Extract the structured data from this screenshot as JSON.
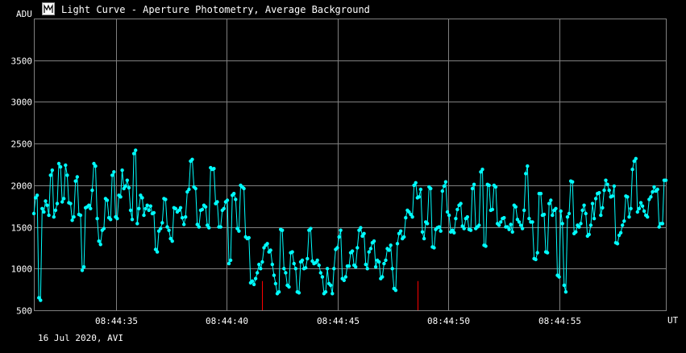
{
  "window": {
    "title": "Light Curve - Aperture Photometry, Average Background"
  },
  "footer": {
    "text": "16 Jul 2020, AVI"
  },
  "colors": {
    "background": "#000000",
    "grid": "#808080",
    "series": "#00ffff",
    "marker": "#ff0000"
  },
  "icons": {
    "app": "light-curve-app-icon"
  },
  "chart_data": {
    "type": "line",
    "title": "Light Curve - Aperture Photometry, Average Background",
    "ylabel": "ADU",
    "xlabel": "UT",
    "ylim": [
      500,
      4000
    ],
    "xlim": [
      "08:44:31.3",
      "08:44:59.8"
    ],
    "y_ticks": [
      500,
      1000,
      1500,
      2000,
      2500,
      3000,
      3500
    ],
    "x_ticks": [
      "08:44:35",
      "08:44:40",
      "08:44:45",
      "08:44:50",
      "08:44:55"
    ],
    "grid": true,
    "markers_x": [
      "08:44:41.6",
      "08:44:48.6"
    ],
    "series": [
      {
        "values": [
          1660,
          1850,
          1880,
          650,
          620,
          1720,
          1680,
          1810,
          1760,
          1640,
          2120,
          2180,
          1620,
          1700,
          1780,
          2260,
          2220,
          1800,
          1840,
          2240,
          2120,
          1790,
          1780,
          1580,
          1620,
          2050,
          2100,
          1650,
          1640,
          980,
          1020,
          1730,
          1740,
          1760,
          1720,
          1940,
          2260,
          2230,
          1600,
          1330,
          1290,
          1460,
          1480,
          1840,
          1820,
          1610,
          1590,
          2120,
          2160,
          1620,
          1600,
          1880,
          1860,
          2180,
          1960,
          1990,
          2060,
          1970,
          1700,
          1590,
          2380,
          2420,
          1540,
          1720,
          1880,
          1850,
          1640,
          1720,
          1760,
          1700,
          1750,
          1660,
          1670,
          1230,
          1200,
          1450,
          1480,
          1550,
          1840,
          1830,
          1500,
          1460,
          1360,
          1330,
          1730,
          1720,
          1680,
          1700,
          1730,
          1610,
          1530,
          1620,
          1920,
          1950,
          2290,
          2310,
          1980,
          1960,
          1530,
          1500,
          1700,
          1710,
          1760,
          1740,
          1520,
          1490,
          2210,
          2190,
          2200,
          1780,
          1800,
          1500,
          1500,
          1700,
          1720,
          1800,
          1820,
          1060,
          1100,
          1880,
          1900,
          1830,
          1480,
          1450,
          2000,
          1980,
          1960,
          1380,
          1360,
          1370,
          830,
          850,
          810,
          880,
          950,
          1050,
          1000,
          1080,
          1250,
          1280,
          1300,
          1200,
          1220,
          1050,
          920,
          820,
          700,
          720,
          1470,
          1460,
          1000,
          950,
          800,
          780,
          1190,
          1200,
          1060,
          1000,
          720,
          710,
          1080,
          1100,
          1000,
          1010,
          1120,
          1460,
          1480,
          1090,
          1060,
          1070,
          1100,
          1040,
          950,
          900,
          700,
          720,
          1000,
          820,
          800,
          700,
          1000,
          1230,
          1250,
          1380,
          1460,
          880,
          860,
          900,
          1030,
          1030,
          1190,
          1210,
          1040,
          1020,
          1250,
          1460,
          1490,
          1390,
          1420,
          1050,
          1000,
          1200,
          1240,
          1310,
          1330,
          1020,
          1100,
          1080,
          880,
          900,
          1060,
          1100,
          1240,
          1220,
          1280,
          1000,
          760,
          740,
          1300,
          1420,
          1450,
          1360,
          1380,
          1610,
          1700,
          1680,
          1650,
          1620,
          2000,
          2030,
          1850,
          1860,
          1950,
          1440,
          1360,
          1560,
          1540,
          1980,
          1960,
          1260,
          1250,
          1470,
          1490,
          1500,
          1450,
          1930,
          1990,
          2040,
          1680,
          1640,
          1440,
          1460,
          1430,
          1600,
          1710,
          1760,
          1780,
          1510,
          1480,
          1600,
          1620,
          1470,
          1460,
          1960,
          2010,
          1480,
          1500,
          1520,
          2160,
          2190,
          1280,
          1270,
          2010,
          2000,
          1700,
          1710,
          2000,
          1980,
          1540,
          1520,
          1560,
          1600,
          1610,
          1500,
          1500,
          1470,
          1530,
          1440,
          1760,
          1740,
          1590,
          1560,
          1520,
          1480,
          1700,
          2140,
          2230,
          1600,
          1560,
          1560,
          1120,
          1110,
          1190,
          1900,
          1900,
          1640,
          1650,
          1200,
          1190,
          1780,
          1820,
          1640,
          1700,
          1720,
          920,
          900,
          1690,
          1540,
          800,
          720,
          1620,
          1660,
          2050,
          2040,
          1420,
          1440,
          1520,
          1500,
          1540,
          1700,
          1760,
          1660,
          1390,
          1410,
          1520,
          1780,
          1600,
          1840,
          1900,
          1910,
          1640,
          1730,
          1940,
          2060,
          2010,
          1940,
          1860,
          1870,
          1990,
          1310,
          1300,
          1400,
          1430,
          1520,
          1570,
          1870,
          1860,
          1620,
          1720,
          2190,
          2290,
          2320,
          1680,
          1720,
          1790,
          1750,
          1690,
          1640,
          1620,
          1830,
          1860,
          1920,
          1980,
          1930,
          1950,
          1500,
          1540,
          1540,
          2060,
          2060
        ]
      }
    ]
  }
}
